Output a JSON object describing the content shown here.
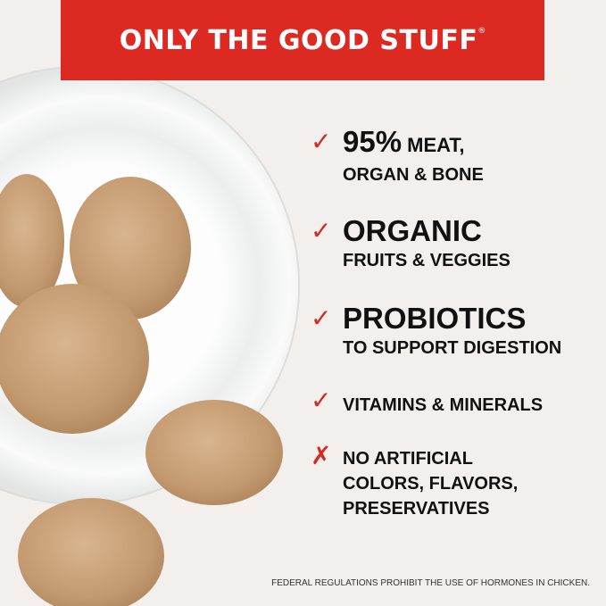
{
  "banner": {
    "title": "ONLY THE GOOD STUFF",
    "registered": "®"
  },
  "benefits": [
    {
      "icon": "check-icon",
      "headline": "95%",
      "headline_suffix": " MEAT,",
      "line2": "ORGAN & BONE"
    },
    {
      "icon": "check-icon",
      "headline": "ORGANIC",
      "line2": "FRUITS & VEGGIES"
    },
    {
      "icon": "check-icon",
      "headline": "PROBIOTICS",
      "line2": "TO SUPPORT DIGESTION"
    },
    {
      "icon": "check-icon",
      "line1": "VITAMINS & MINERALS"
    },
    {
      "icon": "x-icon",
      "line1": "NO ARTIFICIAL",
      "line2": "COLORS, FLAVORS,",
      "line3": "PRESERVATIVES"
    }
  ],
  "disclaimer": "FEDERAL REGULATIONS PROHIBIT THE USE OF HORMONES IN CHICKEN.",
  "colors": {
    "accent": "#dc2a22",
    "background": "#f2efec",
    "text": "#111111"
  }
}
